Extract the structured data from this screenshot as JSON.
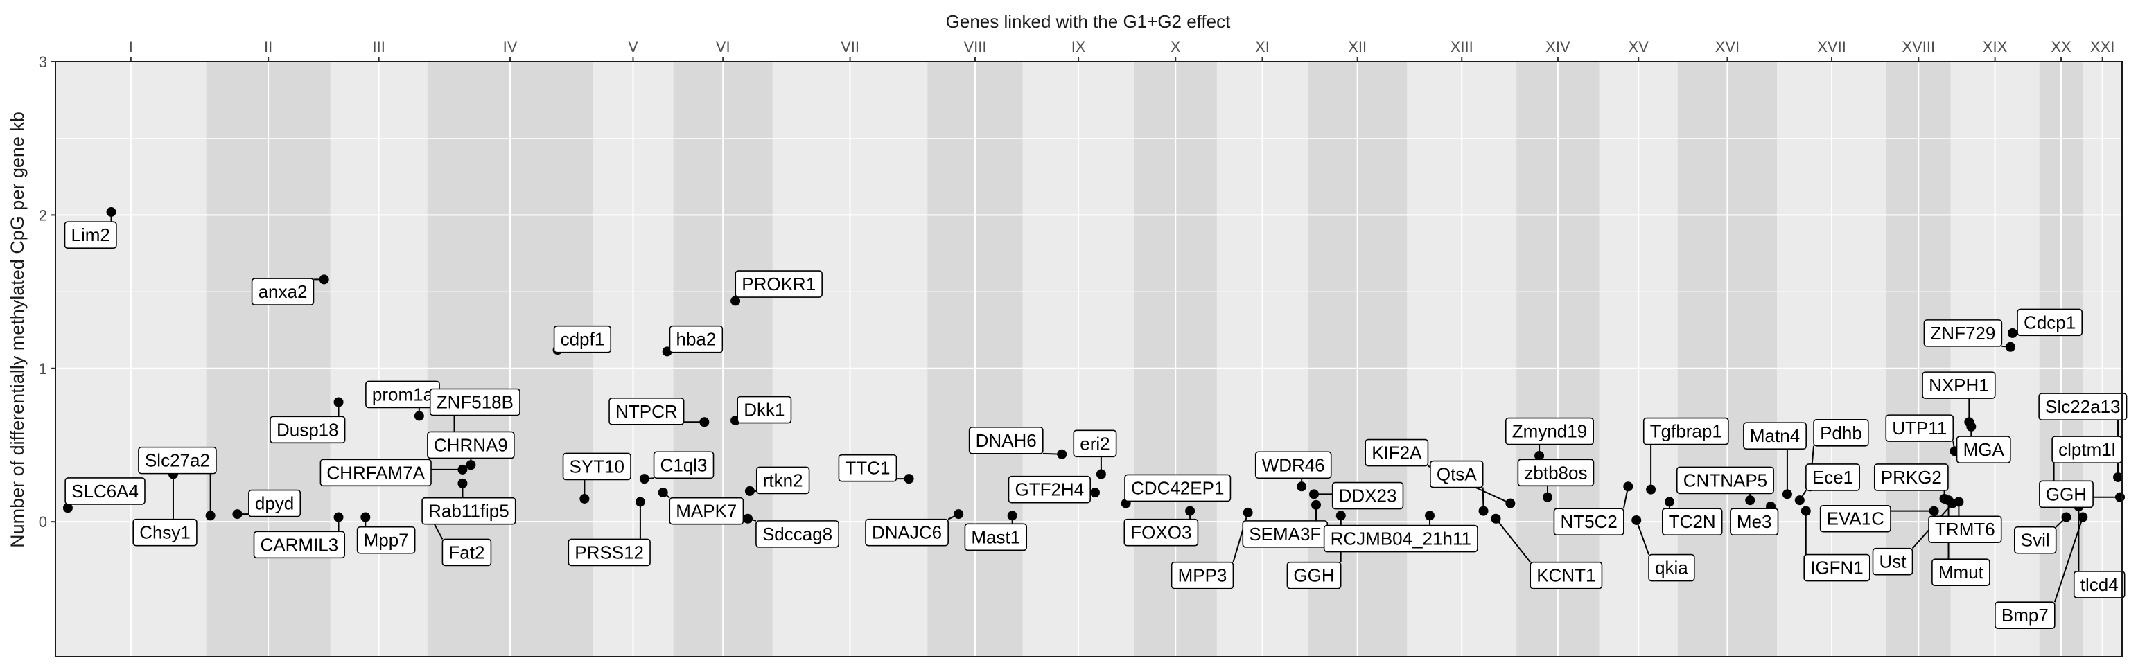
{
  "chart_data": {
    "type": "scatter",
    "title": "Genes linked with the G1+G2 effect",
    "xlabel": "",
    "ylabel": "Number of differentially methylated CpG per gene kb",
    "ylim": [
      -0.88,
      3
    ],
    "yticks": [
      0,
      1,
      2,
      3
    ],
    "grid": true,
    "legend": "none",
    "colors": {
      "point": "#000000",
      "band_light": "#ebebeb",
      "band_dark": "#d9d9d9",
      "grid": "#ffffff",
      "label_fill": "#ffffff"
    },
    "chromosomes": [
      {
        "name": "I",
        "start": 0.0,
        "end": 7.3,
        "shade": "light"
      },
      {
        "name": "II",
        "start": 7.3,
        "end": 13.3,
        "shade": "dark"
      },
      {
        "name": "III",
        "start": 13.3,
        "end": 18.0,
        "shade": "light"
      },
      {
        "name": "IV",
        "start": 18.0,
        "end": 26.0,
        "shade": "dark"
      },
      {
        "name": "V",
        "start": 26.0,
        "end": 29.9,
        "shade": "light"
      },
      {
        "name": "VI",
        "start": 29.9,
        "end": 34.7,
        "shade": "dark"
      },
      {
        "name": "VII",
        "start": 34.7,
        "end": 42.2,
        "shade": "light"
      },
      {
        "name": "VIII",
        "start": 42.2,
        "end": 46.8,
        "shade": "dark"
      },
      {
        "name": "IX",
        "start": 46.8,
        "end": 52.2,
        "shade": "light"
      },
      {
        "name": "X",
        "start": 52.2,
        "end": 56.2,
        "shade": "dark"
      },
      {
        "name": "XI",
        "start": 56.2,
        "end": 60.6,
        "shade": "light"
      },
      {
        "name": "XII",
        "start": 60.6,
        "end": 65.4,
        "shade": "dark"
      },
      {
        "name": "XIII",
        "start": 65.4,
        "end": 70.7,
        "shade": "light"
      },
      {
        "name": "XIV",
        "start": 70.7,
        "end": 74.7,
        "shade": "dark"
      },
      {
        "name": "XV",
        "start": 74.7,
        "end": 78.5,
        "shade": "light"
      },
      {
        "name": "XVI",
        "start": 78.5,
        "end": 83.3,
        "shade": "dark"
      },
      {
        "name": "XVII",
        "start": 83.3,
        "end": 88.6,
        "shade": "light"
      },
      {
        "name": "XVIII",
        "start": 88.6,
        "end": 91.7,
        "shade": "dark"
      },
      {
        "name": "XIX",
        "start": 91.7,
        "end": 96.0,
        "shade": "light"
      },
      {
        "name": "XX",
        "start": 96.0,
        "end": 98.1,
        "shade": "dark"
      },
      {
        "name": "XXI",
        "start": 98.1,
        "end": 100.0,
        "shade": "light"
      }
    ],
    "genes": [
      {
        "name": "Lim2",
        "x": 2.7,
        "y": 2.02,
        "lx": 1.7,
        "ly": 1.87
      },
      {
        "name": "SLC6A4",
        "x": 0.6,
        "y": 0.09,
        "lx": 2.4,
        "ly": 0.2
      },
      {
        "name": "Chsy1",
        "x": 5.7,
        "y": 0.31,
        "lx": 5.3,
        "ly": -0.07
      },
      {
        "name": "Slc27a2",
        "x": 7.5,
        "y": 0.04,
        "lx": 5.9,
        "ly": 0.4
      },
      {
        "name": "dpyd",
        "x": 8.8,
        "y": 0.05,
        "lx": 10.6,
        "ly": 0.12
      },
      {
        "name": "anxa2",
        "x": 13.0,
        "y": 1.58,
        "lx": 11.0,
        "ly": 1.5
      },
      {
        "name": "CARMIL3",
        "x": 13.7,
        "y": 0.03,
        "lx": 11.8,
        "ly": -0.15
      },
      {
        "name": "Mpp7",
        "x": 15.0,
        "y": 0.03,
        "lx": 16.0,
        "ly": -0.12
      },
      {
        "name": "Dusp18",
        "x": 13.7,
        "y": 0.78,
        "lx": 12.2,
        "ly": 0.6
      },
      {
        "name": "CHRFAM7A",
        "x": 19.7,
        "y": 0.34,
        "lx": 15.5,
        "ly": 0.32
      },
      {
        "name": "prom1a",
        "x": 17.6,
        "y": 0.69,
        "lx": 16.8,
        "ly": 0.83
      },
      {
        "name": "ZNF518B",
        "x": 19.3,
        "y": 0.55,
        "lx": 20.3,
        "ly": 0.78
      },
      {
        "name": "CHRNA9",
        "x": 20.1,
        "y": 0.37,
        "lx": 20.1,
        "ly": 0.5
      },
      {
        "name": "Rab11fip5",
        "x": 19.7,
        "y": 0.25,
        "lx": 20.0,
        "ly": 0.07
      },
      {
        "name": "Fat2",
        "x": 18.2,
        "y": 0.02,
        "lx": 19.9,
        "ly": -0.2
      },
      {
        "name": "cdpf1",
        "x": 24.3,
        "y": 1.12,
        "lx": 25.5,
        "ly": 1.19
      },
      {
        "name": "SYT10",
        "x": 25.6,
        "y": 0.15,
        "lx": 26.2,
        "ly": 0.36
      },
      {
        "name": "PRSS12",
        "x": 28.3,
        "y": 0.13,
        "lx": 26.8,
        "ly": -0.2
      },
      {
        "name": "C1ql3",
        "x": 28.5,
        "y": 0.28,
        "lx": 30.4,
        "ly": 0.37
      },
      {
        "name": "hba2",
        "x": 29.6,
        "y": 1.11,
        "lx": 31.0,
        "ly": 1.19
      },
      {
        "name": "NTPCR",
        "x": 31.4,
        "y": 0.65,
        "lx": 28.6,
        "ly": 0.72
      },
      {
        "name": "Dkk1",
        "x": 32.9,
        "y": 0.66,
        "lx": 34.3,
        "ly": 0.73
      },
      {
        "name": "PROKR1",
        "x": 32.9,
        "y": 1.44,
        "lx": 35.0,
        "ly": 1.55
      },
      {
        "name": "MAPK7",
        "x": 29.4,
        "y": 0.19,
        "lx": 31.5,
        "ly": 0.07
      },
      {
        "name": "rtkn2",
        "x": 33.6,
        "y": 0.2,
        "lx": 35.2,
        "ly": 0.27
      },
      {
        "name": "Sdccag8",
        "x": 33.5,
        "y": 0.02,
        "lx": 35.9,
        "ly": -0.08
      },
      {
        "name": "TTC1",
        "x": 41.3,
        "y": 0.28,
        "lx": 39.3,
        "ly": 0.35
      },
      {
        "name": "DNAJC6",
        "x": 43.7,
        "y": 0.05,
        "lx": 41.2,
        "ly": -0.07
      },
      {
        "name": "Mast1",
        "x": 46.3,
        "y": 0.04,
        "lx": 45.5,
        "ly": -0.1
      },
      {
        "name": "DNAH6",
        "x": 48.7,
        "y": 0.44,
        "lx": 46.0,
        "ly": 0.53
      },
      {
        "name": "eri2",
        "x": 50.6,
        "y": 0.31,
        "lx": 50.3,
        "ly": 0.51
      },
      {
        "name": "GTF2H4",
        "x": 50.3,
        "y": 0.19,
        "lx": 48.1,
        "ly": 0.21
      },
      {
        "name": "CDC42EP1",
        "x": 51.8,
        "y": 0.12,
        "lx": 54.3,
        "ly": 0.22
      },
      {
        "name": "FOXO3",
        "x": 54.9,
        "y": 0.07,
        "lx": 53.5,
        "ly": -0.07
      },
      {
        "name": "MPP3",
        "x": 57.7,
        "y": 0.06,
        "lx": 55.5,
        "ly": -0.35
      },
      {
        "name": "WDR46",
        "x": 60.3,
        "y": 0.23,
        "lx": 59.9,
        "ly": 0.37
      },
      {
        "name": "DDX23",
        "x": 60.9,
        "y": 0.18,
        "lx": 63.5,
        "ly": 0.17
      },
      {
        "name": "SEMA3F",
        "x": 61.0,
        "y": 0.11,
        "lx": 59.5,
        "ly": -0.08
      },
      {
        "name": "GGH",
        "x": 62.2,
        "y": 0.04,
        "lx": 60.9,
        "ly": -0.35
      },
      {
        "name": "KIF2A",
        "x": 70.4,
        "y": 0.12,
        "lx": 64.9,
        "ly": 0.45
      },
      {
        "name": "QtsA",
        "x": 69.1,
        "y": 0.07,
        "lx": 67.8,
        "ly": 0.31
      },
      {
        "name": "RCJMB04_21h11",
        "x": 66.5,
        "y": 0.04,
        "lx": 65.1,
        "ly": -0.11
      },
      {
        "name": "KCNT1",
        "x": 69.7,
        "y": 0.02,
        "lx": 73.1,
        "ly": -0.35
      },
      {
        "name": "Zmynd19",
        "x": 71.8,
        "y": 0.43,
        "lx": 72.3,
        "ly": 0.59
      },
      {
        "name": "zbtb8os",
        "x": 72.2,
        "y": 0.16,
        "lx": 72.6,
        "ly": 0.32
      },
      {
        "name": "NT5C2",
        "x": 76.1,
        "y": 0.23,
        "lx": 74.2,
        "ly": 0.0
      },
      {
        "name": "Tgfbrap1",
        "x": 77.2,
        "y": 0.21,
        "lx": 78.9,
        "ly": 0.59
      },
      {
        "name": "TC2N",
        "x": 78.1,
        "y": 0.13,
        "lx": 79.2,
        "ly": 0.0
      },
      {
        "name": "qkia",
        "x": 76.5,
        "y": 0.01,
        "lx": 78.2,
        "ly": -0.3
      },
      {
        "name": "CNTNAP5",
        "x": 82.0,
        "y": 0.14,
        "lx": 80.8,
        "ly": 0.27
      },
      {
        "name": "Me3",
        "x": 83.0,
        "y": 0.1,
        "lx": 82.2,
        "ly": 0.0
      },
      {
        "name": "Matn4",
        "x": 83.8,
        "y": 0.18,
        "lx": 83.2,
        "ly": 0.56
      },
      {
        "name": "Pdhb",
        "x": 84.9,
        "y": 0.23,
        "lx": 86.4,
        "ly": 0.58
      },
      {
        "name": "Ece1",
        "x": 84.4,
        "y": 0.14,
        "lx": 86.0,
        "ly": 0.29
      },
      {
        "name": "EVA1C",
        "x": 90.9,
        "y": 0.07,
        "lx": 87.1,
        "ly": 0.02
      },
      {
        "name": "IGFN1",
        "x": 84.7,
        "y": 0.07,
        "lx": 86.2,
        "ly": -0.3
      },
      {
        "name": "UTP11",
        "x": 91.9,
        "y": 0.46,
        "lx": 90.2,
        "ly": 0.61
      },
      {
        "name": "NXPH1",
        "x": 92.6,
        "y": 0.65,
        "lx": 92.1,
        "ly": 0.89
      },
      {
        "name": "MGA",
        "x": 92.7,
        "y": 0.62,
        "lx": 93.3,
        "ly": 0.47
      },
      {
        "name": "PRKG2",
        "x": 91.4,
        "y": 0.15,
        "lx": 89.8,
        "ly": 0.29
      },
      {
        "name": "Ust",
        "x": 91.8,
        "y": 0.12,
        "lx": 88.9,
        "ly": -0.26
      },
      {
        "name": "TRMT6",
        "x": 92.1,
        "y": 0.13,
        "lx": 92.4,
        "ly": -0.05
      },
      {
        "name": "Mmut",
        "x": 91.6,
        "y": 0.14,
        "lx": 92.2,
        "ly": -0.33
      },
      {
        "name": "ZNF729",
        "x": 94.6,
        "y": 1.14,
        "lx": 92.3,
        "ly": 1.23
      },
      {
        "name": "Cdcp1",
        "x": 94.7,
        "y": 1.23,
        "lx": 96.5,
        "ly": 1.3
      },
      {
        "name": "Slc22a13",
        "x": 99.8,
        "y": 0.29,
        "lx": 98.1,
        "ly": 0.75
      },
      {
        "name": "clptm1l",
        "x": 96.7,
        "y": 0.22,
        "lx": 98.3,
        "ly": 0.47
      },
      {
        "name": "GGH",
        "x": 99.9,
        "y": 0.16,
        "lx": 97.3,
        "ly": 0.18
      },
      {
        "name": "Svil",
        "x": 97.3,
        "y": 0.03,
        "lx": 95.8,
        "ly": -0.12
      },
      {
        "name": "Bmp7",
        "x": 98.1,
        "y": 0.03,
        "lx": 95.3,
        "ly": -0.61
      },
      {
        "name": "tlcd4",
        "x": 97.9,
        "y": 0.1,
        "lx": 98.9,
        "ly": -0.41
      }
    ]
  }
}
